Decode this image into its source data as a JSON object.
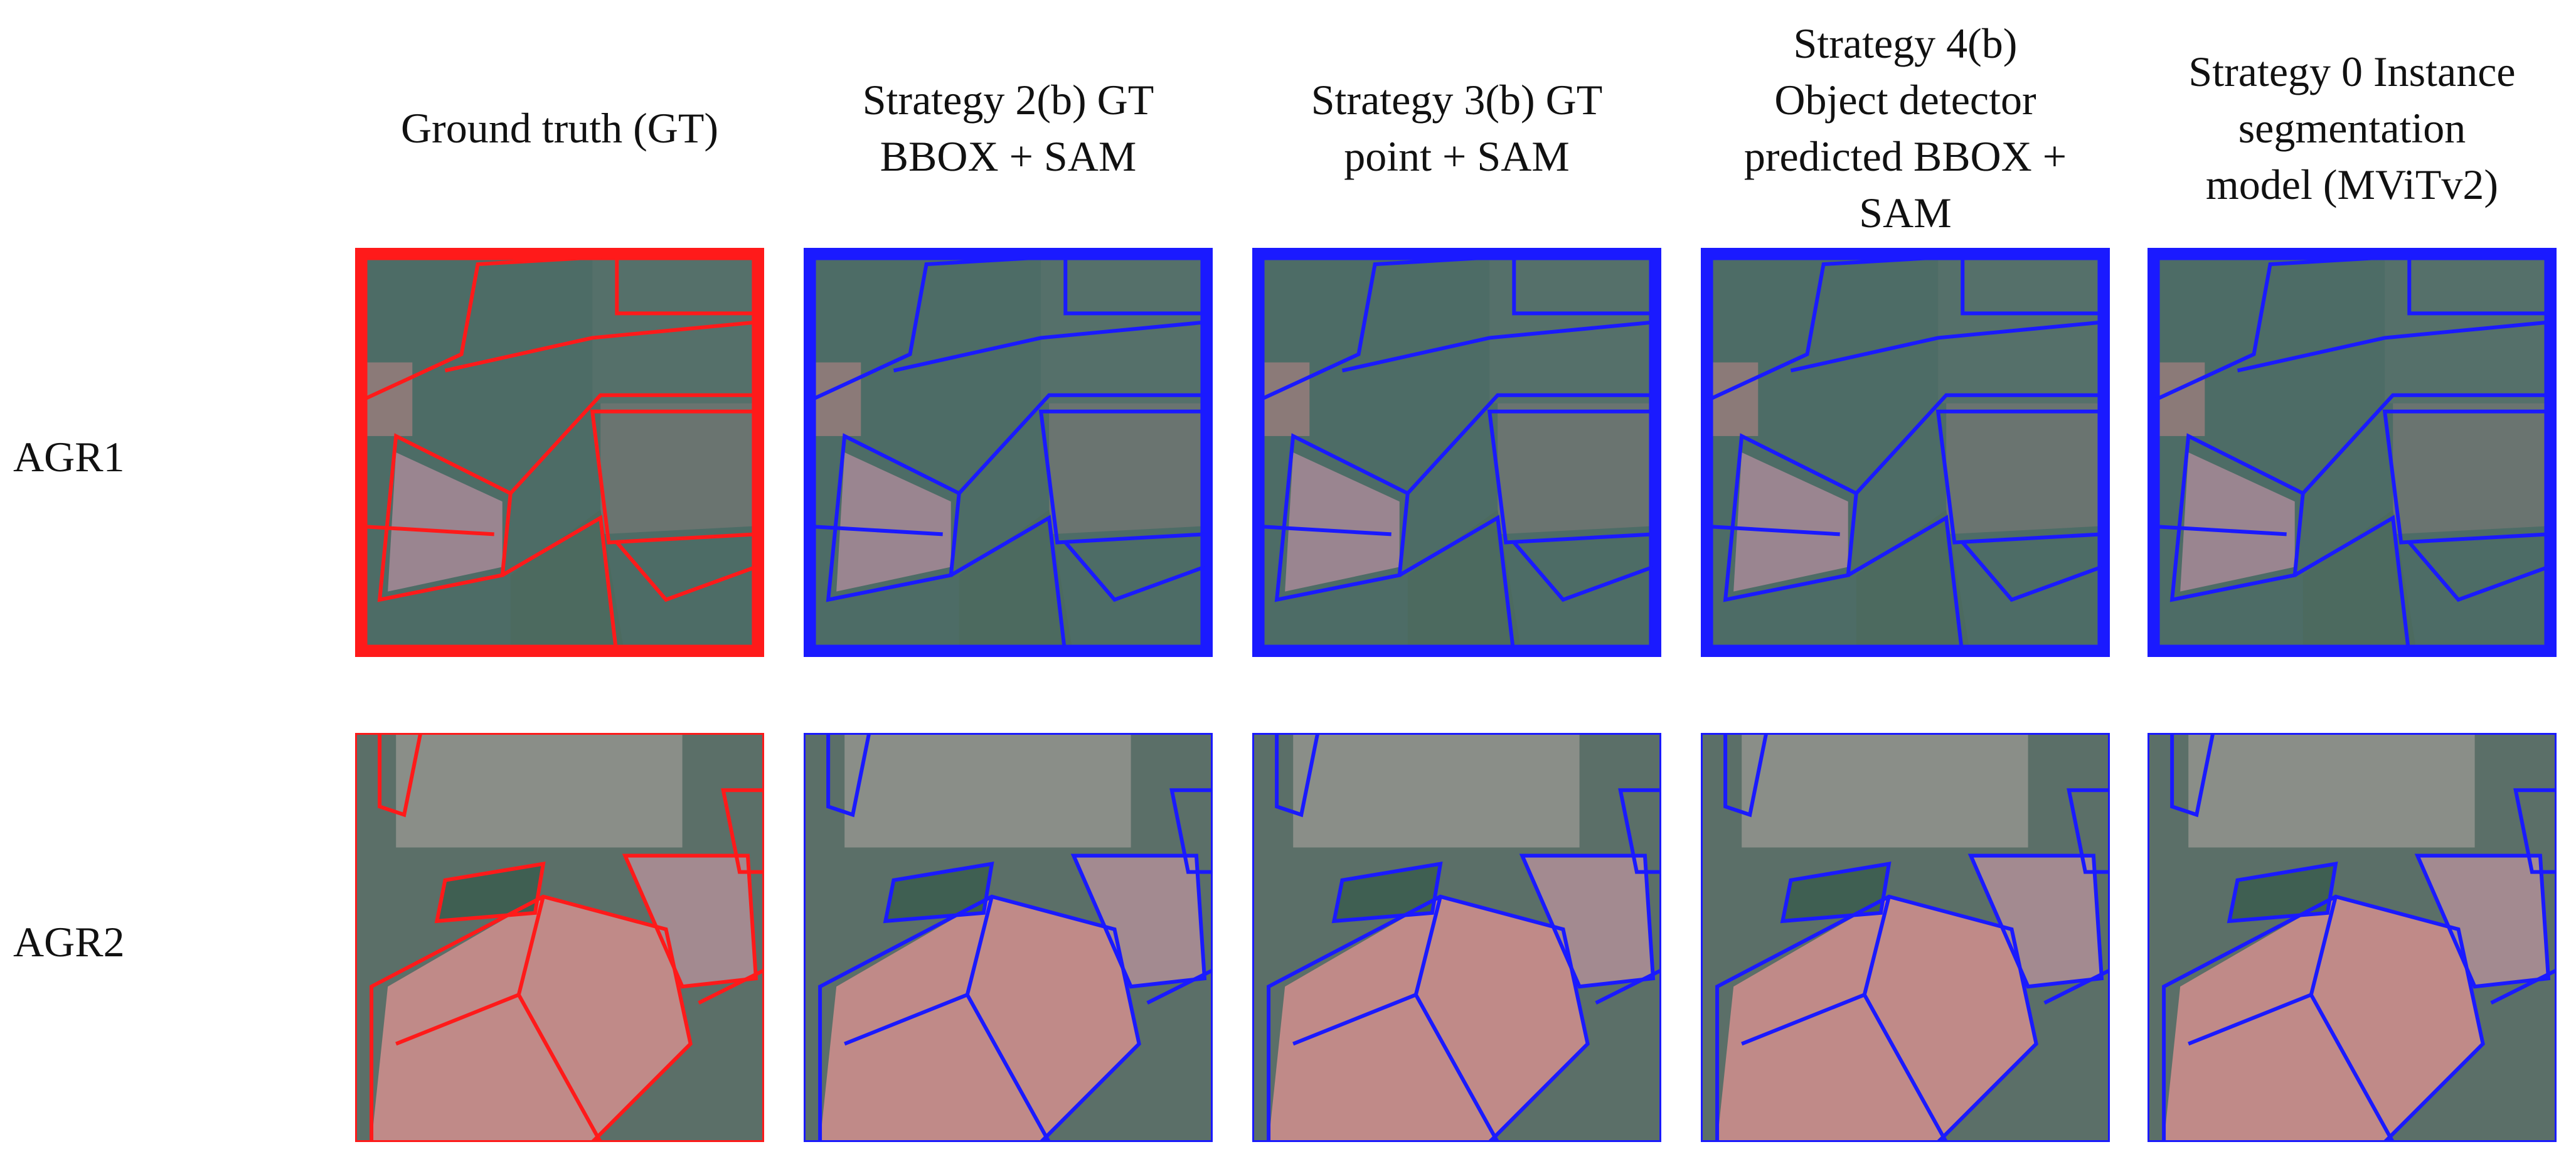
{
  "columns": [
    [
      "Ground truth (GT)"
    ],
    [
      "Strategy 2(b) GT",
      "BBOX + SAM"
    ],
    [
      "Strategy 3(b) GT",
      "point + SAM"
    ],
    [
      "Strategy 4(b)",
      "Object detector",
      "predicted BBOX +",
      "SAM"
    ],
    [
      "Strategy 0 Instance",
      "segmentation",
      "model (MViTv2)"
    ]
  ],
  "rows": [
    "AGR1",
    "AGR2"
  ]
}
